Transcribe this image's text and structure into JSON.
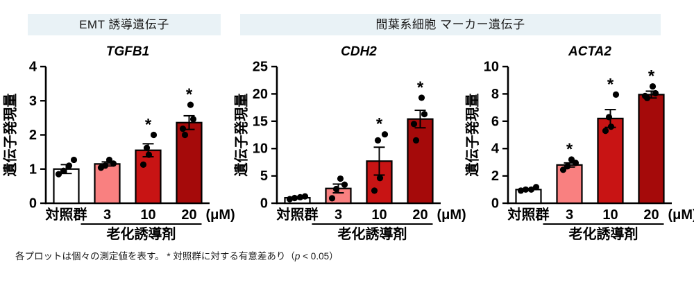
{
  "headers": [
    {
      "label": "EMT 誘導遺伝子"
    },
    {
      "label": "間葉系細胞 マーカー遺伝子"
    }
  ],
  "palette": {
    "header_bg": "#E9F2F6",
    "axis_color": "#000000",
    "point_color": "#000000",
    "control_fill": "#FFFFFF",
    "dose3_fill": "#F98080",
    "dose10_fill": "#C81414",
    "dose20_fill": "#A50A0A"
  },
  "footnote": {
    "prefix": "各プロットは個々の測定値を表す。  * 対照群に対する有意差あり（",
    "p_symbol": "p",
    "suffix": " < 0.05）"
  },
  "chart_data": [
    {
      "type": "bar",
      "title": "TGFB1",
      "ylabel": "遺伝子発現量",
      "ylim": [
        0,
        4
      ],
      "yticks": [
        0,
        1,
        2,
        3,
        4
      ],
      "categories": [
        "対照群",
        "3",
        "10",
        "20"
      ],
      "unit_label": "(μM)",
      "group_label": "老化誘導剤",
      "group_range": [
        1,
        3
      ],
      "values": [
        1.0,
        1.15,
        1.55,
        2.36
      ],
      "errors": [
        0.13,
        0.06,
        0.19,
        0.2
      ],
      "points": [
        [
          0.85,
          0.95,
          1.1,
          1.27
        ],
        [
          1.04,
          1.1,
          1.16,
          1.27
        ],
        [
          1.13,
          1.42,
          1.62,
          2.0
        ],
        [
          2.0,
          2.18,
          2.46,
          2.88
        ]
      ],
      "significant": [
        false,
        false,
        true,
        true
      ],
      "bar_colors": [
        "#FFFFFF",
        "#F98080",
        "#C81414",
        "#A50A0A"
      ]
    },
    {
      "type": "bar",
      "title": "CDH2",
      "ylabel": "遺伝子発現量",
      "ylim": [
        0,
        25
      ],
      "yticks": [
        0,
        5,
        10,
        15,
        20,
        25
      ],
      "categories": [
        "対照群",
        "3",
        "10",
        "20"
      ],
      "unit_label": "(μM)",
      "group_label": "老化誘導剤",
      "group_range": [
        1,
        3
      ],
      "values": [
        1.0,
        2.7,
        7.7,
        15.4
      ],
      "errors": [
        0.15,
        0.8,
        2.55,
        1.6
      ],
      "points": [
        [
          0.75,
          0.95,
          1.1,
          1.25
        ],
        [
          0.9,
          2.6,
          3.4,
          4.5
        ],
        [
          2.3,
          4.6,
          11.5,
          12.6
        ],
        [
          11.5,
          14.5,
          16.3,
          19.3
        ]
      ],
      "significant": [
        false,
        false,
        true,
        true
      ],
      "bar_colors": [
        "#FFFFFF",
        "#F98080",
        "#C81414",
        "#A50A0A"
      ]
    },
    {
      "type": "bar",
      "title": "ACTA2",
      "ylabel": "遺伝子発現量",
      "ylim": [
        0,
        10
      ],
      "yticks": [
        0,
        2,
        4,
        6,
        8,
        10
      ],
      "categories": [
        "対照群",
        "3",
        "10",
        "20"
      ],
      "unit_label": "(μM)",
      "group_label": "老化誘導剤",
      "group_range": [
        1,
        3
      ],
      "values": [
        1.0,
        2.8,
        6.2,
        7.95
      ],
      "errors": [
        0.07,
        0.15,
        0.65,
        0.25
      ],
      "points": [
        [
          0.92,
          1.0,
          1.0,
          1.18
        ],
        [
          2.45,
          2.7,
          2.95,
          3.2
        ],
        [
          5.3,
          5.6,
          6.3,
          7.95
        ],
        [
          7.7,
          7.85,
          8.05,
          8.55
        ]
      ],
      "significant": [
        false,
        true,
        true,
        true
      ],
      "bar_colors": [
        "#FFFFFF",
        "#F98080",
        "#C81414",
        "#A50A0A"
      ]
    }
  ]
}
